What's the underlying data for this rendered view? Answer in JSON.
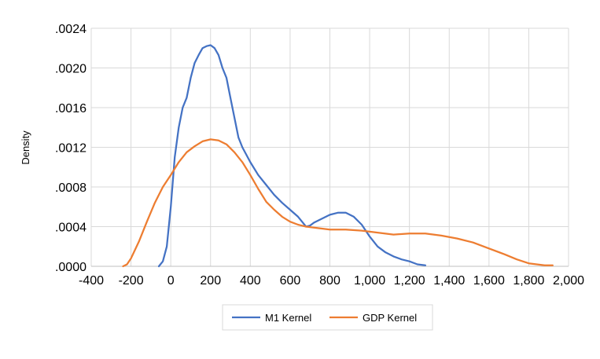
{
  "chart_data": {
    "type": "line",
    "ylabel": "Density",
    "xlabel": "",
    "xlim": [
      -400,
      2000
    ],
    "ylim": [
      0,
      0.0024
    ],
    "x_ticks": [
      -400,
      -200,
      0,
      200,
      400,
      600,
      800,
      1000,
      1200,
      1400,
      1600,
      1800,
      2000
    ],
    "x_tick_labels": [
      "-400",
      "-200",
      "0",
      "200",
      "400",
      "600",
      "800",
      "1,000",
      "1,200",
      "1,400",
      "1,600",
      "1,800",
      "2,000"
    ],
    "y_ticks": [
      0,
      0.0004,
      0.0008,
      0.0012,
      0.0016,
      0.002,
      0.0024
    ],
    "y_tick_labels": [
      ".0000",
      ".0004",
      ".0008",
      ".0012",
      ".0016",
      ".0020",
      ".0024"
    ],
    "grid": true,
    "legend_position": "bottom",
    "series": [
      {
        "name": "M1 Kernel",
        "color": "#4472C4",
        "points": [
          [
            -60,
            0
          ],
          [
            -40,
            5e-05
          ],
          [
            -20,
            0.0002
          ],
          [
            0,
            0.0006
          ],
          [
            20,
            0.0011
          ],
          [
            40,
            0.0014
          ],
          [
            60,
            0.0016
          ],
          [
            80,
            0.0017
          ],
          [
            100,
            0.0019
          ],
          [
            120,
            0.00205
          ],
          [
            140,
            0.00213
          ],
          [
            160,
            0.0022
          ],
          [
            180,
            0.00222
          ],
          [
            200,
            0.00223
          ],
          [
            220,
            0.0022
          ],
          [
            240,
            0.00213
          ],
          [
            260,
            0.002
          ],
          [
            280,
            0.0019
          ],
          [
            300,
            0.0017
          ],
          [
            320,
            0.0015
          ],
          [
            340,
            0.0013
          ],
          [
            360,
            0.0012
          ],
          [
            400,
            0.00105
          ],
          [
            440,
            0.00092
          ],
          [
            480,
            0.00082
          ],
          [
            520,
            0.00072
          ],
          [
            560,
            0.00064
          ],
          [
            600,
            0.00057
          ],
          [
            640,
            0.0005
          ],
          [
            660,
            0.00045
          ],
          [
            680,
            0.0004
          ],
          [
            700,
            0.00041
          ],
          [
            720,
            0.00044
          ],
          [
            760,
            0.00048
          ],
          [
            800,
            0.00052
          ],
          [
            840,
            0.00054
          ],
          [
            880,
            0.00054
          ],
          [
            920,
            0.0005
          ],
          [
            960,
            0.00042
          ],
          [
            1000,
            0.0003
          ],
          [
            1040,
            0.0002
          ],
          [
            1080,
            0.00014
          ],
          [
            1120,
            0.0001
          ],
          [
            1160,
            7e-05
          ],
          [
            1200,
            5e-05
          ],
          [
            1240,
            2e-05
          ],
          [
            1280,
            1e-05
          ]
        ]
      },
      {
        "name": "GDP Kernel",
        "color": "#ED7D31",
        "points": [
          [
            -240,
            0
          ],
          [
            -220,
            2e-05
          ],
          [
            -200,
            8e-05
          ],
          [
            -160,
            0.00025
          ],
          [
            -120,
            0.00045
          ],
          [
            -80,
            0.00064
          ],
          [
            -40,
            0.0008
          ],
          [
            0,
            0.00092
          ],
          [
            40,
            0.00105
          ],
          [
            80,
            0.00115
          ],
          [
            120,
            0.00121
          ],
          [
            160,
            0.00126
          ],
          [
            200,
            0.00128
          ],
          [
            240,
            0.00127
          ],
          [
            280,
            0.00123
          ],
          [
            320,
            0.00115
          ],
          [
            360,
            0.00105
          ],
          [
            400,
            0.00092
          ],
          [
            440,
            0.00078
          ],
          [
            480,
            0.00065
          ],
          [
            520,
            0.00057
          ],
          [
            560,
            0.0005
          ],
          [
            600,
            0.00045
          ],
          [
            640,
            0.00042
          ],
          [
            680,
            0.0004
          ],
          [
            720,
            0.00039
          ],
          [
            760,
            0.00038
          ],
          [
            800,
            0.00037
          ],
          [
            880,
            0.00037
          ],
          [
            960,
            0.00036
          ],
          [
            1040,
            0.00034
          ],
          [
            1120,
            0.00032
          ],
          [
            1200,
            0.00033
          ],
          [
            1280,
            0.00033
          ],
          [
            1360,
            0.00031
          ],
          [
            1440,
            0.00028
          ],
          [
            1520,
            0.00024
          ],
          [
            1600,
            0.00018
          ],
          [
            1680,
            0.00012
          ],
          [
            1740,
            7e-05
          ],
          [
            1800,
            3e-05
          ],
          [
            1880,
            1e-05
          ],
          [
            1920,
            1e-05
          ]
        ]
      }
    ]
  }
}
